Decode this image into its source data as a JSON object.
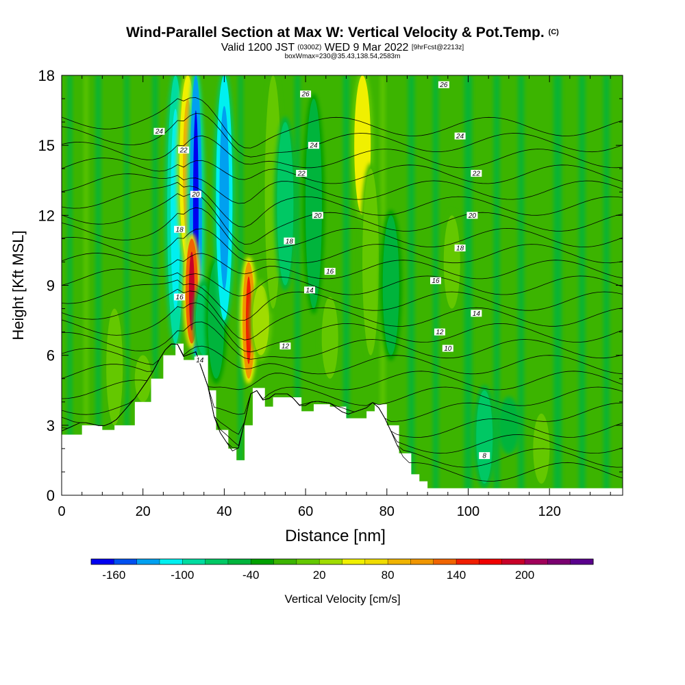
{
  "titles": {
    "main": "Wind-Parallel Section at Max W: Vertical Velocity & Pot.Temp.",
    "main_unit": "(C)",
    "sub_a": "Valid 1200 JST",
    "sub_utc": "(0300Z)",
    "sub_b": "WED 9 Mar 2022",
    "sub_fcst": "[9hrFcst@2213z]",
    "sub2": "boxWmax=230@35.43,138.54,2583m"
  },
  "colors": {
    "colorbar": [
      "#0000f0",
      "#0050f0",
      "#00a0f0",
      "#00f0f0",
      "#00dca0",
      "#00c864",
      "#00b43c",
      "#00a000",
      "#3cb400",
      "#64c800",
      "#a0dc00",
      "#f0f000",
      "#f0dc00",
      "#f0b400",
      "#f09600",
      "#f06400",
      "#f01e00",
      "#f00000",
      "#c80028",
      "#a0005a",
      "#7a0070",
      "#5a008c"
    ],
    "terrain": "#ffffff",
    "contour": "#000000"
  },
  "chart_data": {
    "type": "heatmap",
    "xlabel": "Distance [nm]",
    "ylabel": "Height [Kft MSL]",
    "xlim": [
      0,
      138
    ],
    "ylim": [
      0,
      18
    ],
    "xticks": [
      0,
      20,
      40,
      60,
      80,
      100,
      120
    ],
    "yticks": [
      0,
      3,
      6,
      9,
      12,
      15,
      18
    ],
    "colorbar": {
      "label": "Vertical Velocity [cm/s]",
      "tick_labels": [
        "-160",
        "-100",
        "-40",
        "20",
        "80",
        "140",
        "200"
      ]
    },
    "terrain_height_kft": [
      [
        0,
        2.6
      ],
      [
        5,
        3.0
      ],
      [
        10,
        2.8
      ],
      [
        13,
        3.0
      ],
      [
        18,
        4.0
      ],
      [
        22,
        5.0
      ],
      [
        25,
        6.0
      ],
      [
        28,
        6.5
      ],
      [
        30,
        5.8
      ],
      [
        33,
        6.0
      ],
      [
        36,
        4.5
      ],
      [
        38,
        2.8
      ],
      [
        41,
        2.0
      ],
      [
        43,
        1.5
      ],
      [
        45,
        3.0
      ],
      [
        47,
        4.6
      ],
      [
        50,
        3.8
      ],
      [
        52,
        4.2
      ],
      [
        56,
        4.2
      ],
      [
        59,
        3.6
      ],
      [
        62,
        3.9
      ],
      [
        66,
        3.8
      ],
      [
        70,
        3.3
      ],
      [
        75,
        3.6
      ],
      [
        77,
        3.9
      ],
      [
        80,
        3.0
      ],
      [
        83,
        1.8
      ],
      [
        86,
        0.9
      ],
      [
        88,
        0.6
      ],
      [
        90,
        0.3
      ],
      [
        95,
        0.3
      ],
      [
        138,
        0.3
      ]
    ],
    "vertical_velocity_features": [
      {
        "x": 28,
        "y": [
          6.5,
          18
        ],
        "value": -100
      },
      {
        "x": 31,
        "y": [
          10,
          18
        ],
        "value": 100
      },
      {
        "x": 33,
        "y": [
          6,
          18
        ],
        "value": -160
      },
      {
        "x": 32,
        "y": [
          6.5,
          11
        ],
        "value": 200
      },
      {
        "x": 35,
        "y": [
          6,
          9
        ],
        "value": -80
      },
      {
        "x": 38,
        "y": [
          5,
          10
        ],
        "value": -40
      },
      {
        "x": 40,
        "y": [
          7.5,
          18
        ],
        "value": -120
      },
      {
        "x": 46,
        "y": [
          5,
          10
        ],
        "value": 160
      },
      {
        "x": 49,
        "y": [
          6,
          9
        ],
        "value": 60
      },
      {
        "x": 52,
        "y": [
          8,
          18
        ],
        "value": 40
      },
      {
        "x": 55,
        "y": [
          9,
          16
        ],
        "value": -60
      },
      {
        "x": 62,
        "y": [
          8,
          17
        ],
        "value": -40
      },
      {
        "x": 66,
        "y": [
          5,
          8.5
        ],
        "value": 40
      },
      {
        "x": 74,
        "y": [
          12,
          18
        ],
        "value": 80
      },
      {
        "x": 76,
        "y": [
          6,
          14
        ],
        "value": 40
      },
      {
        "x": 81,
        "y": [
          6,
          12
        ],
        "value": -40
      },
      {
        "x": 96,
        "y": [
          8,
          12
        ],
        "value": 30
      },
      {
        "x": 104,
        "y": [
          0.5,
          4.5
        ],
        "value": -60
      },
      {
        "x": 110,
        "y": [
          2,
          4
        ],
        "value": -50
      },
      {
        "x": 118,
        "y": [
          0.5,
          3.5
        ],
        "value": 40
      },
      {
        "x": 13,
        "y": [
          3,
          8
        ],
        "value": 40
      },
      {
        "x": 20,
        "y": [
          4,
          6
        ],
        "value": 30
      }
    ],
    "potential_temperature_contours_C": [
      {
        "value": 8,
        "label_x": 104,
        "label_y": 1.7
      },
      {
        "value": 10,
        "label_x": 95,
        "label_y": 6.3
      },
      {
        "value": 12,
        "label_x": 93,
        "label_y": 7.0
      },
      {
        "value": 12,
        "label_x": 55,
        "label_y": 6.4
      },
      {
        "value": 14,
        "label_x": 34,
        "label_y": 5.8
      },
      {
        "value": 14,
        "label_x": 61,
        "label_y": 8.8
      },
      {
        "value": 14,
        "label_x": 102,
        "label_y": 7.8
      },
      {
        "value": 16,
        "label_x": 29,
        "label_y": 8.5
      },
      {
        "value": 16,
        "label_x": 66,
        "label_y": 9.6
      },
      {
        "value": 16,
        "label_x": 92,
        "label_y": 9.2
      },
      {
        "value": 18,
        "label_x": 29,
        "label_y": 11.4
      },
      {
        "value": 18,
        "label_x": 56,
        "label_y": 10.9
      },
      {
        "value": 18,
        "label_x": 98,
        "label_y": 10.6
      },
      {
        "value": 20,
        "label_x": 33,
        "label_y": 12.9
      },
      {
        "value": 20,
        "label_x": 63,
        "label_y": 12.0
      },
      {
        "value": 20,
        "label_x": 101,
        "label_y": 12.0
      },
      {
        "value": 22,
        "label_x": 30,
        "label_y": 14.8
      },
      {
        "value": 22,
        "label_x": 59,
        "label_y": 13.8
      },
      {
        "value": 22,
        "label_x": 102,
        "label_y": 13.8
      },
      {
        "value": 24,
        "label_x": 24,
        "label_y": 15.6
      },
      {
        "value": 24,
        "label_x": 62,
        "label_y": 15.0
      },
      {
        "value": 24,
        "label_x": 98,
        "label_y": 15.4
      },
      {
        "value": 26,
        "label_x": 60,
        "label_y": 17.2
      },
      {
        "value": 26,
        "label_x": 94,
        "label_y": 17.6
      }
    ]
  }
}
